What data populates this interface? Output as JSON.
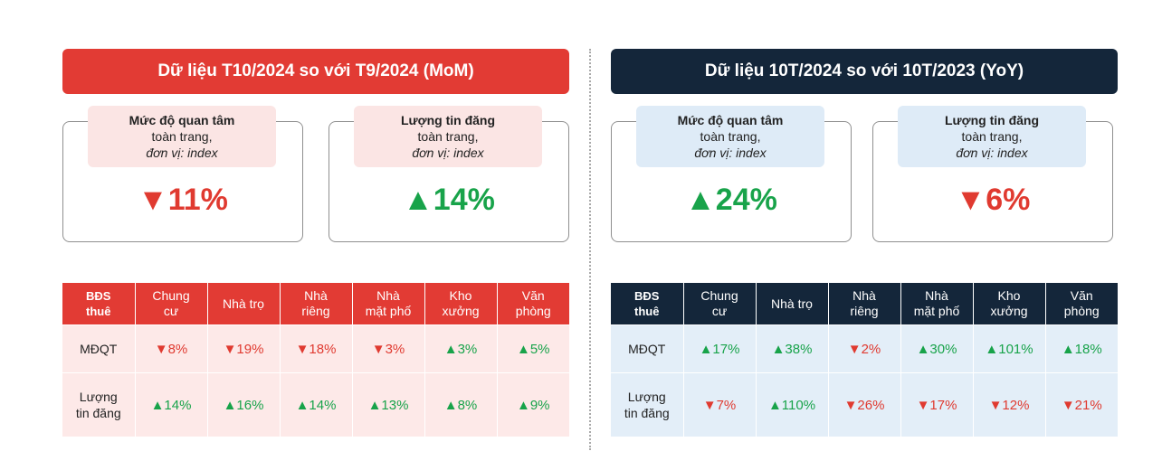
{
  "colors": {
    "left_accent": "#e23b34",
    "left_tag_bg": "#fbe5e4",
    "left_row_bg": "#fde9e8",
    "right_accent": "#14263a",
    "right_tag_bg": "#deebf7",
    "right_row_bg": "#e3eef8",
    "up": "#18a34a",
    "down": "#e03a30"
  },
  "panels": [
    {
      "title": "Dữ liệu T10/2024 so với T9/2024 (MoM)",
      "cards": [
        {
          "label1": "Mức độ quan tâm",
          "label2": "toàn trang,",
          "label3": "đơn vị: index",
          "value": "▼11%",
          "dir": "down"
        },
        {
          "label1": "Lượng tin đăng",
          "label2": "toàn trang,",
          "label3": "đơn vị: index",
          "value": "▲14%",
          "dir": "up"
        }
      ],
      "table": {
        "headers": [
          "BĐS\nthuê",
          "Chung\ncư",
          "Nhà trọ",
          "Nhà\nriêng",
          "Nhà\nmặt phố",
          "Kho\nxưởng",
          "Văn\nphòng"
        ],
        "rows": [
          {
            "label": "MĐQT",
            "cells": [
              {
                "v": "▼8%",
                "dir": "down"
              },
              {
                "v": "▼19%",
                "dir": "down"
              },
              {
                "v": "▼18%",
                "dir": "down"
              },
              {
                "v": "▼3%",
                "dir": "down"
              },
              {
                "v": "▲3%",
                "dir": "up"
              },
              {
                "v": "▲5%",
                "dir": "up"
              }
            ]
          },
          {
            "label": "Lượng\ntin đăng",
            "cells": [
              {
                "v": "▲14%",
                "dir": "up"
              },
              {
                "v": "▲16%",
                "dir": "up"
              },
              {
                "v": "▲14%",
                "dir": "up"
              },
              {
                "v": "▲13%",
                "dir": "up"
              },
              {
                "v": "▲8%",
                "dir": "up"
              },
              {
                "v": "▲9%",
                "dir": "up"
              }
            ]
          }
        ]
      }
    },
    {
      "title": "Dữ liệu 10T/2024 so với 10T/2023 (YoY)",
      "cards": [
        {
          "label1": "Mức độ quan tâm",
          "label2": "toàn trang,",
          "label3": "đơn vị: index",
          "value": "▲24%",
          "dir": "up"
        },
        {
          "label1": "Lượng tin đăng",
          "label2": "toàn trang,",
          "label3": "đơn vị: index",
          "value": "▼6%",
          "dir": "down"
        }
      ],
      "table": {
        "headers": [
          "BĐS\nthuê",
          "Chung\ncư",
          "Nhà trọ",
          "Nhà\nriêng",
          "Nhà\nmặt phố",
          "Kho\nxưởng",
          "Văn\nphòng"
        ],
        "rows": [
          {
            "label": "MĐQT",
            "cells": [
              {
                "v": "▲17%",
                "dir": "up"
              },
              {
                "v": "▲38%",
                "dir": "up"
              },
              {
                "v": "▼2%",
                "dir": "down"
              },
              {
                "v": "▲30%",
                "dir": "up"
              },
              {
                "v": "▲101%",
                "dir": "up"
              },
              {
                "v": "▲18%",
                "dir": "up"
              }
            ]
          },
          {
            "label": "Lượng\ntin đăng",
            "cells": [
              {
                "v": "▼7%",
                "dir": "down"
              },
              {
                "v": "▲110%",
                "dir": "up"
              },
              {
                "v": "▼26%",
                "dir": "down"
              },
              {
                "v": "▼17%",
                "dir": "down"
              },
              {
                "v": "▼12%",
                "dir": "down"
              },
              {
                "v": "▼21%",
                "dir": "down"
              }
            ]
          }
        ]
      }
    }
  ]
}
